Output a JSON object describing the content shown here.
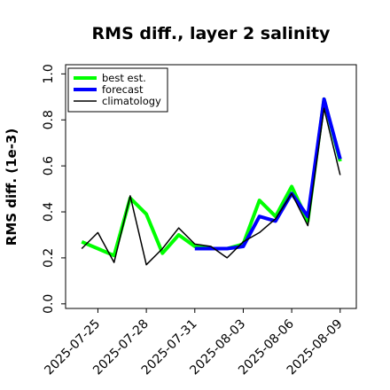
{
  "chart_data": {
    "type": "line",
    "title": "RMS diff., layer 2 salinity",
    "xlabel": "",
    "ylabel": "RMS diff. (1e-3)",
    "ylim": [
      -0.02,
      1.04
    ],
    "yticks": [
      0.0,
      0.2,
      0.4,
      0.6,
      0.8,
      1.0
    ],
    "ytick_labels": [
      "0.0",
      "0.2",
      "0.4",
      "0.6",
      "0.8",
      "1.0"
    ],
    "xlim": [
      "2025-07-23",
      "2025-08-10"
    ],
    "xticks": [
      "2025-07-25",
      "2025-07-28",
      "2025-07-31",
      "2025-08-03",
      "2025-08-06",
      "2025-08-09"
    ],
    "xtick_labels": [
      "2025-07-25",
      "2025-07-28",
      "2025-07-31",
      "2025-08-03",
      "2025-08-06",
      "2025-08-09"
    ],
    "highlighted_xtick": "2025-07-31",
    "highlight_color": "#228b22",
    "legend_position": "top-left",
    "grid": false,
    "series": [
      {
        "name": "best est.",
        "color": "#00ff00",
        "x": [
          "2025-07-24",
          "2025-07-25",
          "2025-07-26",
          "2025-07-27",
          "2025-07-28",
          "2025-07-29",
          "2025-07-30",
          "2025-07-31",
          "2025-08-01",
          "2025-08-02",
          "2025-08-03",
          "2025-08-04",
          "2025-08-05",
          "2025-08-06",
          "2025-08-07",
          "2025-08-08",
          "2025-08-09"
        ],
        "values": [
          0.27,
          0.24,
          0.21,
          0.46,
          0.39,
          0.22,
          0.3,
          0.25,
          0.24,
          0.24,
          0.26,
          0.45,
          0.38,
          0.51,
          0.36,
          0.89,
          0.62
        ]
      },
      {
        "name": "forecast",
        "color": "#0000ff",
        "x": [
          "2025-07-31",
          "2025-08-01",
          "2025-08-02",
          "2025-08-03",
          "2025-08-04",
          "2025-08-05",
          "2025-08-06",
          "2025-08-07",
          "2025-08-08",
          "2025-08-09"
        ],
        "values": [
          0.24,
          0.24,
          0.24,
          0.25,
          0.38,
          0.36,
          0.48,
          0.38,
          0.89,
          0.63
        ]
      },
      {
        "name": "climatology",
        "color": "#000000",
        "x": [
          "2025-07-24",
          "2025-07-25",
          "2025-07-26",
          "2025-07-27",
          "2025-07-28",
          "2025-07-29",
          "2025-07-30",
          "2025-07-31",
          "2025-08-01",
          "2025-08-02",
          "2025-08-03",
          "2025-08-04",
          "2025-08-05",
          "2025-08-06",
          "2025-08-07",
          "2025-08-08",
          "2025-08-09"
        ],
        "values": [
          0.24,
          0.31,
          0.18,
          0.47,
          0.17,
          0.24,
          0.33,
          0.26,
          0.25,
          0.2,
          0.27,
          0.31,
          0.37,
          0.48,
          0.34,
          0.85,
          0.56
        ]
      }
    ]
  }
}
